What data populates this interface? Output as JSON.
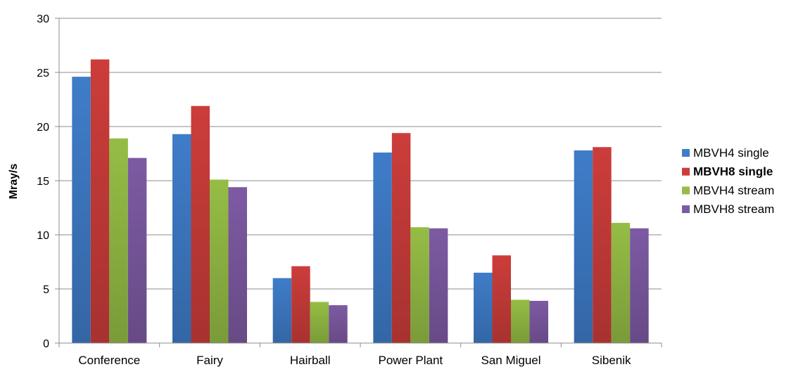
{
  "chart_data": {
    "type": "bar",
    "title": "",
    "xlabel": "",
    "ylabel": "Mray/s",
    "ylim": [
      0,
      30
    ],
    "yticks": [
      "0",
      "5",
      "10",
      "15",
      "20",
      "25",
      "30"
    ],
    "grid": true,
    "legend_position": "right",
    "categories": [
      "Conference",
      "Fairy",
      "Hairball",
      "Power Plant",
      "San Miguel",
      "Sibenik"
    ],
    "series": [
      {
        "name": "MBVH4 single",
        "color": "#3f7cc9",
        "bold": false,
        "values": [
          24.6,
          19.3,
          6.0,
          17.6,
          6.5,
          17.8
        ]
      },
      {
        "name": "MBVH8 single",
        "color": "#cc3d3a",
        "bold": true,
        "values": [
          26.2,
          21.9,
          7.1,
          19.4,
          8.1,
          18.1
        ]
      },
      {
        "name": "MBVH4 stream",
        "color": "#95bd45",
        "bold": false,
        "values": [
          18.9,
          15.1,
          3.8,
          10.7,
          4.0,
          11.1
        ]
      },
      {
        "name": "MBVH8 stream",
        "color": "#7d5aa3",
        "bold": false,
        "values": [
          17.1,
          14.4,
          3.5,
          10.6,
          3.9,
          10.6
        ]
      }
    ]
  }
}
